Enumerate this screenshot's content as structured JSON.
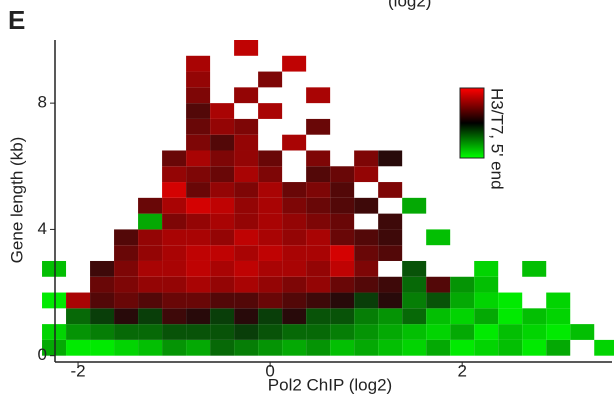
{
  "chart_data": {
    "type": "heatmap",
    "panel_label": "E",
    "subtitle": "(log2)",
    "x_label": "Pol2 ChIP (log2)",
    "y_label": "Gene length (kb)",
    "colorbar_label": "H3/T7, 5' end",
    "xlim": [
      -2.24,
      3.56
    ],
    "ylim": [
      -0.2,
      10
    ],
    "xticks": [
      -2,
      0,
      2
    ],
    "yticks": [
      0,
      4,
      8
    ],
    "x": [
      -2.25,
      -2.0,
      -1.75,
      -1.5,
      -1.25,
      -1.0,
      -0.75,
      -0.5,
      -0.25,
      0,
      0.25,
      0.5,
      0.75,
      1.0,
      1.25,
      1.5,
      1.75,
      2.0,
      2.25,
      2.5,
      2.75,
      3.0,
      3.25,
      3.5
    ],
    "y": [
      0.25,
      0.75,
      1.25,
      1.75,
      2.25,
      2.75,
      3.25,
      3.75,
      4.25,
      4.75,
      5.25,
      5.75,
      6.25,
      6.75,
      7.25,
      7.75,
      8.25,
      8.75,
      9.25,
      9.75
    ],
    "values": [
      [
        -0.6,
        -0.9,
        -0.9,
        -0.8,
        -0.7,
        -0.5,
        -0.6,
        -0.3,
        -0.4,
        -0.5,
        -0.6,
        -0.5,
        -0.7,
        -0.6,
        -0.7,
        -0.8,
        -0.6,
        -0.9,
        -0.8,
        -0.7,
        -0.9,
        -0.6,
        null,
        -0.8
      ],
      [
        -0.8,
        -0.5,
        -0.4,
        -0.3,
        -0.3,
        -0.2,
        -0.2,
        -0.2,
        -0.1,
        -0.2,
        -0.3,
        -0.3,
        -0.4,
        -0.5,
        -0.6,
        -0.7,
        -0.8,
        -0.6,
        -0.9,
        -0.7,
        -0.8,
        -0.9,
        -0.7,
        null
      ],
      [
        null,
        -0.3,
        -0.1,
        0,
        -0.1,
        0.1,
        0,
        -0.1,
        0,
        -0.1,
        0,
        -0.2,
        -0.2,
        -0.4,
        -0.5,
        -0.3,
        -0.7,
        -0.8,
        -0.6,
        -0.9,
        -0.7,
        -0.8,
        null,
        null
      ],
      [
        -0.9,
        0.6,
        0.2,
        0.3,
        0.2,
        0.3,
        0.3,
        0.2,
        0.2,
        0.3,
        0.2,
        0.1,
        0,
        -0.1,
        0,
        -0.4,
        -0.2,
        -0.6,
        -0.8,
        -0.9,
        null,
        -0.8,
        null,
        null
      ],
      [
        null,
        null,
        0.3,
        0.4,
        0.5,
        0.5,
        0.6,
        0.5,
        0.6,
        0.5,
        0.4,
        0.5,
        0.3,
        0.2,
        0.1,
        -0.3,
        0.2,
        -0.5,
        -0.7,
        null,
        null,
        null,
        null,
        null
      ],
      [
        -0.7,
        null,
        0.1,
        0.4,
        0.6,
        0.6,
        0.7,
        0.6,
        0.7,
        0.6,
        0.6,
        0.5,
        0.7,
        0.4,
        null,
        -0.2,
        null,
        null,
        -0.8,
        null,
        -0.7,
        null,
        null,
        null
      ],
      [
        null,
        null,
        null,
        0.3,
        0.5,
        0.6,
        0.7,
        0.7,
        0.6,
        0.7,
        0.6,
        0.6,
        0.8,
        0.3,
        0.2,
        null,
        null,
        null,
        null,
        null,
        null,
        null,
        null,
        null
      ],
      [
        null,
        null,
        null,
        0.2,
        0.5,
        0.6,
        0.6,
        0.5,
        0.7,
        0.6,
        0.5,
        0.6,
        0.3,
        0.2,
        0.1,
        null,
        -0.7,
        null,
        null,
        null,
        null,
        null,
        null,
        null
      ],
      [
        null,
        null,
        null,
        null,
        -0.6,
        0.4,
        0.5,
        0.6,
        0.5,
        0.6,
        0.5,
        0.4,
        0.3,
        null,
        0.1,
        null,
        null,
        null,
        null,
        null,
        null,
        null,
        null,
        null
      ],
      [
        null,
        null,
        null,
        null,
        0.3,
        0.6,
        0.8,
        0.7,
        0.5,
        0.6,
        0.4,
        0.3,
        0.2,
        0.1,
        null,
        -0.6,
        null,
        null,
        null,
        null,
        null,
        null,
        null,
        null
      ],
      [
        null,
        null,
        null,
        null,
        null,
        0.8,
        0.3,
        0.5,
        0.4,
        0.6,
        0.3,
        0.4,
        0.2,
        null,
        0.4,
        null,
        null,
        null,
        null,
        null,
        null,
        null,
        null,
        null
      ],
      [
        null,
        null,
        null,
        null,
        null,
        0.5,
        0.4,
        0.3,
        0.6,
        0.4,
        null,
        0.2,
        0.3,
        0.5,
        null,
        null,
        null,
        null,
        null,
        null,
        null,
        null,
        null,
        null
      ],
      [
        null,
        null,
        null,
        null,
        null,
        0.3,
        0.6,
        0.4,
        0.5,
        0.3,
        null,
        0.4,
        null,
        0.4,
        0,
        null,
        null,
        null,
        null,
        null,
        null,
        null,
        null,
        null
      ],
      [
        null,
        null,
        null,
        null,
        null,
        null,
        0.4,
        0.2,
        0.5,
        null,
        0.6,
        null,
        null,
        null,
        null,
        null,
        null,
        null,
        null,
        null,
        null,
        null,
        null,
        null
      ],
      [
        null,
        null,
        null,
        null,
        null,
        null,
        0.3,
        0.5,
        0.4,
        null,
        null,
        0.3,
        null,
        null,
        null,
        null,
        null,
        null,
        null,
        null,
        null,
        null,
        null,
        null
      ],
      [
        null,
        null,
        null,
        null,
        null,
        null,
        0.2,
        0.6,
        null,
        0.6,
        null,
        null,
        null,
        null,
        null,
        null,
        null,
        null,
        null,
        null,
        null,
        null,
        null,
        null
      ],
      [
        null,
        null,
        null,
        null,
        null,
        null,
        0.4,
        null,
        0.5,
        null,
        null,
        0.6,
        null,
        null,
        null,
        null,
        null,
        null,
        null,
        null,
        null,
        null,
        null,
        null
      ],
      [
        null,
        null,
        null,
        null,
        null,
        null,
        0.5,
        null,
        null,
        0.4,
        null,
        null,
        null,
        null,
        null,
        null,
        null,
        null,
        null,
        null,
        null,
        null,
        null,
        null
      ],
      [
        null,
        null,
        null,
        null,
        null,
        null,
        0.6,
        null,
        null,
        null,
        0.7,
        null,
        null,
        null,
        null,
        null,
        null,
        null,
        null,
        null,
        null,
        null,
        null,
        null
      ],
      [
        null,
        null,
        null,
        null,
        null,
        null,
        null,
        null,
        0.7,
        null,
        null,
        null,
        null,
        null,
        null,
        null,
        null,
        null,
        null,
        null,
        null,
        null,
        null,
        null
      ]
    ]
  }
}
